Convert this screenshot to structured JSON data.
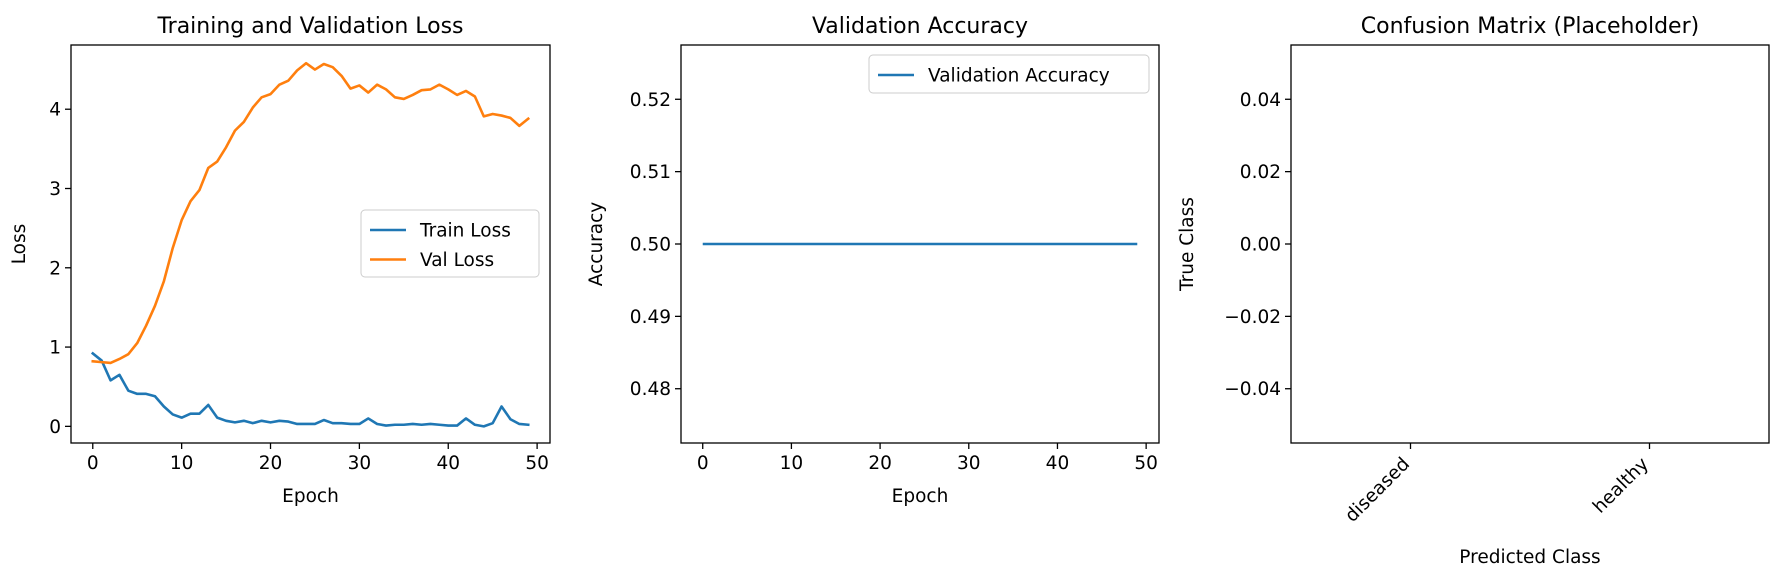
{
  "chart_data": [
    {
      "type": "line",
      "title": "Training and Validation Loss",
      "xlabel": "Epoch",
      "ylabel": "Loss",
      "xlim": [
        -2.45,
        51.45
      ],
      "ylim": [
        -0.21,
        4.81
      ],
      "xticks": [
        0,
        10,
        20,
        30,
        40,
        50
      ],
      "xtick_labels": [
        "0",
        "10",
        "20",
        "30",
        "40",
        "50"
      ],
      "yticks": [
        0,
        1,
        2,
        3,
        4
      ],
      "ytick_labels": [
        "0",
        "1",
        "2",
        "3",
        "4"
      ],
      "legend": {
        "position": "center-right"
      },
      "x": [
        0,
        1,
        2,
        3,
        4,
        5,
        6,
        7,
        8,
        9,
        10,
        11,
        12,
        13,
        14,
        15,
        16,
        17,
        18,
        19,
        20,
        21,
        22,
        23,
        24,
        25,
        26,
        27,
        28,
        29,
        30,
        31,
        32,
        33,
        34,
        35,
        36,
        37,
        38,
        39,
        40,
        41,
        42,
        43,
        44,
        45,
        46,
        47,
        48,
        49
      ],
      "series": [
        {
          "name": "Train Loss",
          "color": "#1f77b4",
          "values": [
            0.92,
            0.83,
            0.58,
            0.65,
            0.45,
            0.41,
            0.41,
            0.38,
            0.25,
            0.15,
            0.11,
            0.16,
            0.16,
            0.27,
            0.11,
            0.07,
            0.05,
            0.07,
            0.04,
            0.07,
            0.05,
            0.07,
            0.06,
            0.03,
            0.03,
            0.03,
            0.08,
            0.04,
            0.04,
            0.03,
            0.03,
            0.1,
            0.03,
            0.01,
            0.02,
            0.02,
            0.03,
            0.02,
            0.03,
            0.02,
            0.01,
            0.01,
            0.1,
            0.02,
            0.0,
            0.04,
            0.25,
            0.09,
            0.03,
            0.02
          ]
        },
        {
          "name": "Val Loss",
          "color": "#ff7f0e",
          "values": [
            0.82,
            0.81,
            0.8,
            0.85,
            0.91,
            1.05,
            1.27,
            1.52,
            1.83,
            2.25,
            2.6,
            2.84,
            2.98,
            3.26,
            3.34,
            3.52,
            3.73,
            3.84,
            4.02,
            4.15,
            4.19,
            4.31,
            4.36,
            4.49,
            4.58,
            4.5,
            4.57,
            4.53,
            4.42,
            4.26,
            4.3,
            4.21,
            4.31,
            4.25,
            4.15,
            4.13,
            4.18,
            4.24,
            4.25,
            4.31,
            4.25,
            4.18,
            4.23,
            4.16,
            3.91,
            3.94,
            3.92,
            3.89,
            3.79,
            3.88
          ]
        }
      ]
    },
    {
      "type": "line",
      "title": "Validation Accuracy",
      "xlabel": "Epoch",
      "ylabel": "Accuracy",
      "xlim": [
        -2.45,
        51.45
      ],
      "ylim": [
        0.4725,
        0.5275
      ],
      "xticks": [
        0,
        10,
        20,
        30,
        40,
        50
      ],
      "xtick_labels": [
        "0",
        "10",
        "20",
        "30",
        "40",
        "50"
      ],
      "yticks": [
        0.48,
        0.49,
        0.5,
        0.51,
        0.52
      ],
      "ytick_labels": [
        "0.48",
        "0.49",
        "0.50",
        "0.51",
        "0.52"
      ],
      "legend": {
        "position": "top-right"
      },
      "x_range": [
        0,
        49
      ],
      "series": [
        {
          "name": "Validation Accuracy",
          "color": "#1f77b4",
          "values": [
            0.5,
            0.5
          ]
        }
      ]
    },
    {
      "type": "heatmap",
      "title": "Confusion Matrix (Placeholder)",
      "xlabel": "Predicted Class",
      "ylabel": "True Class",
      "ylim": [
        -0.055,
        0.055
      ],
      "yticks": [
        -0.04,
        -0.02,
        0.0,
        0.02,
        0.04
      ],
      "ytick_labels": [
        "−0.04",
        "−0.02",
        "0.00",
        "0.02",
        "0.04"
      ],
      "xtick_labels": [
        "diseased",
        "healthy"
      ],
      "values": []
    }
  ]
}
